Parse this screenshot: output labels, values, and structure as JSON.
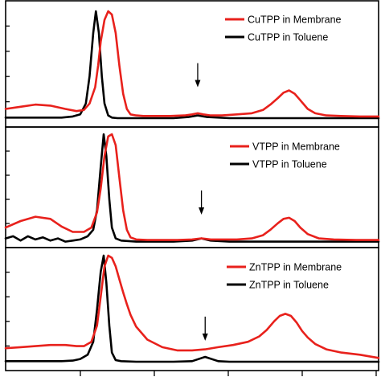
{
  "colors": {
    "membrane": "#e8211c",
    "toluene": "#000000",
    "axis": "#000000",
    "arrow": "#000000"
  },
  "chart_data": [
    {
      "type": "line",
      "panel": "top",
      "xlim": [
        0,
        100
      ],
      "ylim": [
        0,
        1
      ],
      "grid": false,
      "legend_position": "top-right",
      "arrow_at": {
        "x": 51.5,
        "y": 0.27
      },
      "series": [
        {
          "name": "CuTPP in Membrane",
          "color": "#e8211c",
          "x": [
            0,
            4,
            8,
            12,
            16,
            19,
            21,
            22.5,
            24,
            24.8,
            25.5,
            26.5,
            27.5,
            28.5,
            29.5,
            30.5,
            31.5,
            32.5,
            33.5,
            35,
            37,
            40,
            44,
            48,
            50,
            51.5,
            53,
            55,
            58,
            62,
            66,
            69,
            71,
            73,
            74.5,
            76,
            77.5,
            79,
            81,
            83,
            86,
            90,
            95,
            100
          ],
          "y": [
            0.1,
            0.12,
            0.14,
            0.13,
            0.1,
            0.08,
            0.09,
            0.15,
            0.3,
            0.5,
            0.72,
            0.92,
            1.0,
            0.97,
            0.8,
            0.5,
            0.24,
            0.1,
            0.05,
            0.04,
            0.035,
            0.035,
            0.035,
            0.04,
            0.05,
            0.06,
            0.05,
            0.04,
            0.04,
            0.05,
            0.06,
            0.09,
            0.14,
            0.2,
            0.25,
            0.27,
            0.24,
            0.18,
            0.1,
            0.06,
            0.04,
            0.035,
            0.03,
            0.03
          ]
        },
        {
          "name": "CuTPP in Toluene",
          "color": "#000000",
          "x": [
            0,
            5,
            10,
            15,
            18,
            20,
            21.5,
            22.5,
            23.5,
            24.2,
            25,
            25.8,
            26.5,
            27.5,
            28.5,
            30,
            35,
            45,
            49,
            51.5,
            54,
            60,
            70,
            80,
            90,
            100
          ],
          "y": [
            0.02,
            0.02,
            0.02,
            0.02,
            0.03,
            0.05,
            0.15,
            0.4,
            0.8,
            1.0,
            0.8,
            0.4,
            0.15,
            0.04,
            0.02,
            0.015,
            0.015,
            0.015,
            0.025,
            0.04,
            0.025,
            0.015,
            0.015,
            0.015,
            0.015,
            0.015
          ]
        }
      ]
    },
    {
      "type": "line",
      "panel": "middle",
      "xlim": [
        0,
        100
      ],
      "ylim": [
        0,
        1
      ],
      "grid": false,
      "legend_position": "top-right",
      "arrow_at": {
        "x": 52.5,
        "y": 0.23
      },
      "series": [
        {
          "name": "VTPP in Membrane",
          "color": "#e8211c",
          "x": [
            0,
            4,
            8,
            12,
            15,
            18,
            21,
            23,
            24.5,
            25.5,
            26.5,
            27.5,
            28.5,
            29.5,
            30.5,
            31.5,
            32.5,
            33.5,
            35,
            38,
            42,
            46,
            50,
            52.5,
            55,
            58,
            62,
            66,
            69,
            71,
            73,
            74.5,
            76,
            77.5,
            79,
            81,
            84,
            88,
            94,
            100
          ],
          "y": [
            0.14,
            0.2,
            0.24,
            0.22,
            0.15,
            0.1,
            0.1,
            0.14,
            0.28,
            0.5,
            0.8,
            0.98,
            1.0,
            0.9,
            0.6,
            0.3,
            0.12,
            0.05,
            0.03,
            0.025,
            0.025,
            0.025,
            0.03,
            0.04,
            0.03,
            0.03,
            0.03,
            0.04,
            0.07,
            0.12,
            0.18,
            0.22,
            0.23,
            0.2,
            0.14,
            0.08,
            0.04,
            0.03,
            0.025,
            0.025
          ]
        },
        {
          "name": "VTPP in Toluene",
          "color": "#000000",
          "x": [
            0,
            2,
            4,
            6,
            8,
            10,
            12,
            14,
            16,
            18,
            20,
            22,
            23.5,
            24.5,
            25.5,
            26.3,
            27,
            27.8,
            28.5,
            29.5,
            31,
            35,
            45,
            50,
            52.5,
            55,
            60,
            70,
            80,
            90,
            100
          ],
          "y": [
            0.04,
            0.06,
            0.02,
            0.06,
            0.03,
            0.05,
            0.02,
            0.04,
            0.01,
            0.02,
            0.03,
            0.06,
            0.12,
            0.3,
            0.7,
            1.0,
            0.8,
            0.4,
            0.14,
            0.04,
            0.02,
            0.01,
            0.01,
            0.02,
            0.04,
            0.02,
            0.01,
            0.01,
            0.01,
            0.01,
            0.01
          ]
        }
      ]
    },
    {
      "type": "line",
      "panel": "bottom",
      "xlim": [
        0,
        100
      ],
      "ylim": [
        0,
        1
      ],
      "grid": false,
      "legend_position": "top-right",
      "arrow_at": {
        "x": 53.5,
        "y": 0.18
      },
      "series": [
        {
          "name": "ZnTPP in Membrane",
          "color": "#e8211c",
          "x": [
            0,
            4,
            8,
            12,
            16,
            19,
            21,
            23,
            24.5,
            25.5,
            26.5,
            27.5,
            28.5,
            29.5,
            30.5,
            31.5,
            32.5,
            33.5,
            35,
            38,
            42,
            46,
            50,
            53.5,
            57,
            61,
            65,
            68,
            70,
            72,
            73.5,
            75,
            76.5,
            78,
            79.5,
            81,
            83,
            86,
            90,
            95,
            100
          ],
          "y": [
            0.14,
            0.15,
            0.16,
            0.17,
            0.17,
            0.16,
            0.16,
            0.2,
            0.35,
            0.62,
            0.9,
            1.0,
            0.98,
            0.9,
            0.78,
            0.66,
            0.55,
            0.45,
            0.34,
            0.22,
            0.15,
            0.12,
            0.12,
            0.13,
            0.15,
            0.17,
            0.2,
            0.25,
            0.31,
            0.39,
            0.44,
            0.46,
            0.44,
            0.38,
            0.3,
            0.24,
            0.18,
            0.13,
            0.1,
            0.08,
            0.05
          ]
        },
        {
          "name": "ZnTPP in Toluene",
          "color": "#000000",
          "x": [
            0,
            5,
            10,
            15,
            18,
            20,
            22,
            23.5,
            24.5,
            25.5,
            26.3,
            27,
            27.8,
            28.5,
            29.5,
            31,
            35,
            45,
            50,
            53.5,
            57,
            60,
            70,
            80,
            90,
            100
          ],
          "y": [
            0.02,
            0.02,
            0.02,
            0.02,
            0.025,
            0.04,
            0.08,
            0.2,
            0.5,
            0.85,
            1.0,
            0.75,
            0.35,
            0.1,
            0.03,
            0.02,
            0.015,
            0.015,
            0.02,
            0.06,
            0.02,
            0.015,
            0.015,
            0.015,
            0.015,
            0.015
          ]
        }
      ]
    }
  ]
}
